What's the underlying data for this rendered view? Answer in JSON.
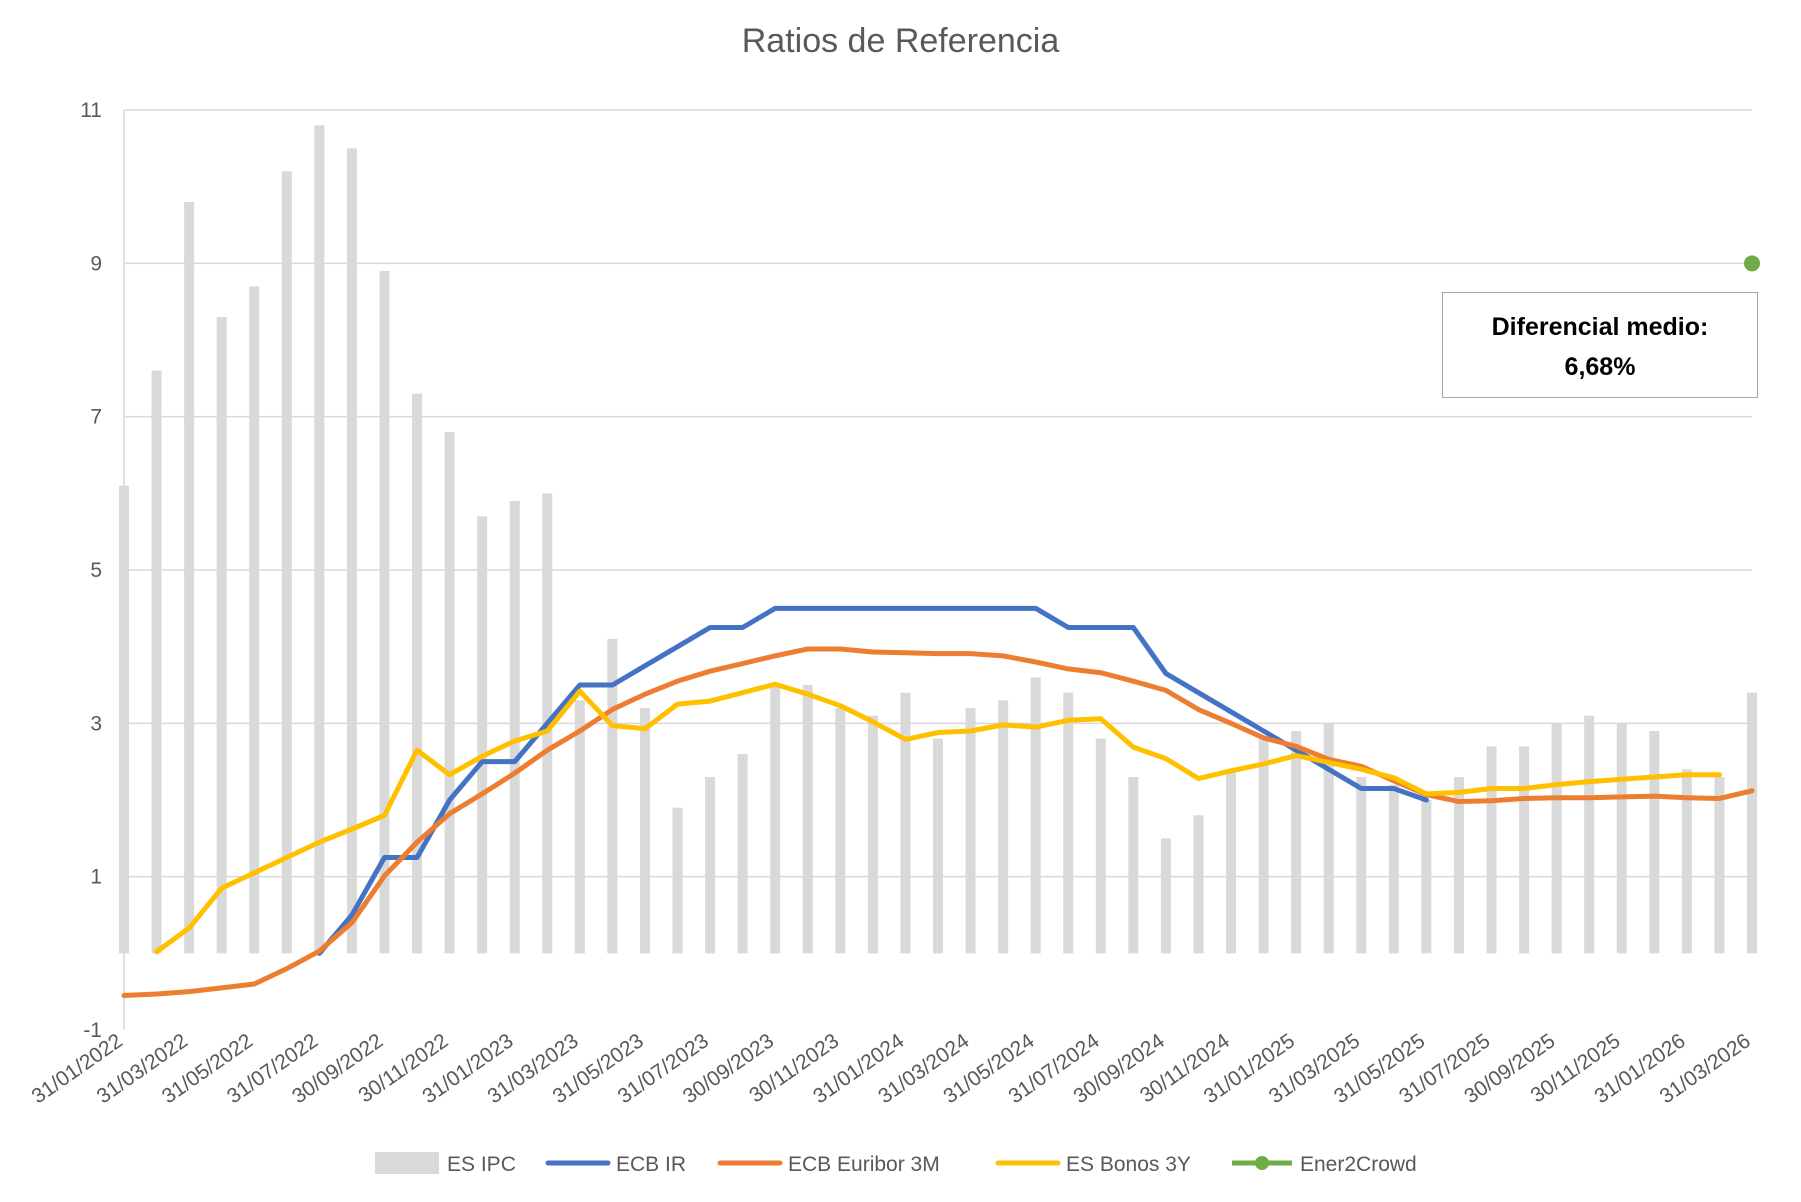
{
  "chart_data": {
    "type": "line",
    "title": "Ratios de Referencia",
    "ylim": [
      -1,
      11
    ],
    "yticks": [
      -1,
      1,
      3,
      5,
      7,
      9,
      11
    ],
    "grid": true,
    "legend_position": "bottom",
    "x": [
      "31/01/2022",
      "28/02/2022",
      "31/03/2022",
      "30/04/2022",
      "31/05/2022",
      "30/06/2022",
      "31/07/2022",
      "31/08/2022",
      "30/09/2022",
      "31/10/2022",
      "30/11/2022",
      "31/12/2022",
      "31/01/2023",
      "28/02/2023",
      "31/03/2023",
      "30/04/2023",
      "31/05/2023",
      "30/06/2023",
      "31/07/2023",
      "31/08/2023",
      "30/09/2023",
      "31/10/2023",
      "30/11/2023",
      "31/12/2023",
      "31/01/2024",
      "29/02/2024",
      "31/03/2024",
      "30/04/2024",
      "31/05/2024",
      "30/06/2024",
      "31/07/2024",
      "31/08/2024",
      "30/09/2024",
      "31/10/2024",
      "30/11/2024",
      "31/12/2024",
      "31/01/2025",
      "28/02/2025",
      "31/03/2025",
      "30/04/2025",
      "31/05/2025",
      "30/06/2025",
      "31/07/2025",
      "31/08/2025",
      "30/09/2025",
      "31/10/2025",
      "30/11/2025",
      "31/12/2025",
      "31/01/2026",
      "28/02/2026",
      "31/03/2026"
    ],
    "x_tick_labels": [
      "31/01/2022",
      "31/03/2022",
      "31/05/2022",
      "31/07/2022",
      "30/09/2022",
      "30/11/2022",
      "31/01/2023",
      "31/03/2023",
      "31/05/2023",
      "31/07/2023",
      "30/09/2023",
      "30/11/2023",
      "31/01/2024",
      "31/03/2024",
      "31/05/2024",
      "31/07/2024",
      "30/09/2024",
      "30/11/2024",
      "31/01/2025",
      "31/03/2025",
      "31/05/2025",
      "31/07/2025",
      "30/09/2025",
      "30/11/2025",
      "31/01/2026",
      "31/03/2026"
    ],
    "series": [
      {
        "name": "ES IPC",
        "type": "bar",
        "color": "#d9d9d9",
        "values": [
          6.1,
          7.6,
          9.8,
          8.3,
          8.7,
          10.2,
          10.8,
          10.5,
          8.9,
          7.3,
          6.8,
          5.7,
          5.9,
          6.0,
          3.3,
          4.1,
          3.2,
          1.9,
          2.3,
          2.6,
          3.5,
          3.5,
          3.2,
          3.1,
          3.4,
          2.8,
          3.2,
          3.3,
          3.6,
          3.4,
          2.8,
          2.3,
          1.5,
          1.8,
          2.4,
          2.8,
          2.9,
          3.0,
          2.3,
          2.2,
          2.0,
          2.3,
          2.7,
          2.7,
          3.0,
          3.1,
          3.0,
          2.9,
          2.4,
          2.3,
          3.4
        ]
      },
      {
        "name": "ECB IR",
        "type": "line",
        "color": "#4472c4",
        "values": [
          null,
          null,
          null,
          null,
          null,
          null,
          0.0,
          0.5,
          1.25,
          1.25,
          2.0,
          2.5,
          2.5,
          3.0,
          3.5,
          3.5,
          3.75,
          4.0,
          4.25,
          4.25,
          4.5,
          4.5,
          4.5,
          4.5,
          4.5,
          4.5,
          4.5,
          4.5,
          4.5,
          4.25,
          4.25,
          4.25,
          3.65,
          3.4,
          3.15,
          2.9,
          2.65,
          2.4,
          2.15,
          2.15,
          2.0,
          null,
          null,
          null,
          null,
          null,
          null,
          null,
          null,
          null,
          null
        ]
      },
      {
        "name": "ECB Euribor 3M",
        "type": "line",
        "color": "#ed7d31",
        "values": [
          -0.55,
          -0.53,
          -0.5,
          -0.45,
          -0.4,
          -0.2,
          0.03,
          0.4,
          1.01,
          1.45,
          1.82,
          2.08,
          2.35,
          2.65,
          2.9,
          3.18,
          3.38,
          3.55,
          3.68,
          3.78,
          3.88,
          3.97,
          3.97,
          3.93,
          3.92,
          3.91,
          3.91,
          3.88,
          3.8,
          3.71,
          3.66,
          3.55,
          3.43,
          3.18,
          3.0,
          2.81,
          2.7,
          2.53,
          2.44,
          2.25,
          2.07,
          1.98,
          1.99,
          2.02,
          2.03,
          2.03,
          2.04,
          2.05,
          2.03,
          2.02,
          2.12
        ]
      },
      {
        "name": "ES Bonos 3Y",
        "type": "line",
        "color": "#ffc000",
        "values": [
          null,
          0.02,
          0.33,
          0.85,
          1.05,
          1.25,
          1.45,
          1.62,
          1.8,
          2.65,
          2.33,
          2.57,
          2.77,
          2.9,
          3.42,
          2.97,
          2.93,
          3.25,
          3.29,
          3.4,
          3.51,
          3.38,
          3.23,
          3.02,
          2.79,
          2.88,
          2.9,
          2.98,
          2.95,
          3.04,
          3.06,
          2.69,
          2.54,
          2.28,
          2.38,
          2.47,
          2.58,
          2.49,
          2.4,
          2.29,
          2.08,
          2.1,
          2.15,
          2.15,
          2.2,
          2.24,
          2.27,
          2.3,
          2.33,
          2.33,
          null
        ]
      },
      {
        "name": "Ener2Crowd",
        "type": "marker",
        "color": "#70ad47",
        "values": [
          null,
          null,
          null,
          null,
          null,
          null,
          null,
          null,
          null,
          null,
          null,
          null,
          null,
          null,
          null,
          null,
          null,
          null,
          null,
          null,
          null,
          null,
          null,
          null,
          null,
          null,
          null,
          null,
          null,
          null,
          null,
          null,
          null,
          null,
          null,
          null,
          null,
          null,
          null,
          null,
          null,
          null,
          null,
          null,
          null,
          null,
          null,
          null,
          null,
          null,
          9.0
        ]
      }
    ],
    "annotation": {
      "line1": "Diferencial medio:",
      "line2": "6,68%"
    }
  }
}
